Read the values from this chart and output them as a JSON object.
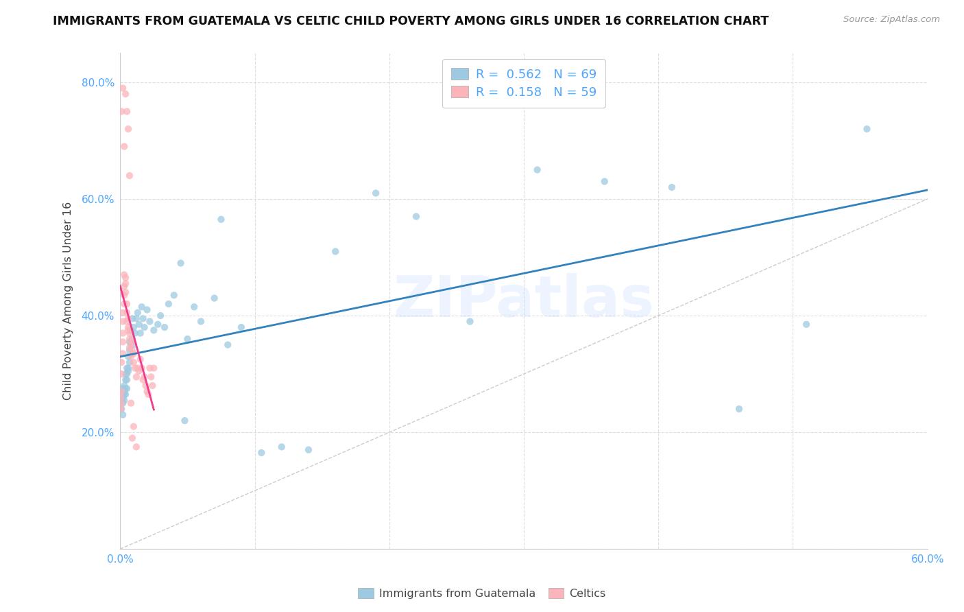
{
  "title": "IMMIGRANTS FROM GUATEMALA VS CELTIC CHILD POVERTY AMONG GIRLS UNDER 16 CORRELATION CHART",
  "source": "Source: ZipAtlas.com",
  "ylabel": "Child Poverty Among Girls Under 16",
  "xlim": [
    0.0,
    0.6
  ],
  "ylim": [
    0.0,
    0.85
  ],
  "x_ticks": [
    0.0,
    0.1,
    0.2,
    0.3,
    0.4,
    0.5,
    0.6
  ],
  "y_ticks": [
    0.0,
    0.2,
    0.4,
    0.6,
    0.8
  ],
  "x_tick_labels": [
    "0.0%",
    "",
    "",
    "",
    "",
    "",
    "60.0%"
  ],
  "y_tick_labels": [
    "",
    "20.0%",
    "40.0%",
    "60.0%",
    "80.0%"
  ],
  "blue_color": "#9ecae1",
  "pink_color": "#fbb4b9",
  "blue_line_color": "#3182bd",
  "pink_line_color": "#f03b8c",
  "diagonal_color": "#cccccc",
  "watermark_text": "ZIPatlas",
  "legend_r1": "0.562",
  "legend_n1": "69",
  "legend_r2": "0.158",
  "legend_n2": "59",
  "legend_label1": "Immigrants from Guatemala",
  "legend_label2": "Celtics",
  "blue_x": [
    0.001,
    0.001,
    0.001,
    0.002,
    0.002,
    0.002,
    0.002,
    0.003,
    0.003,
    0.003,
    0.003,
    0.004,
    0.004,
    0.004,
    0.004,
    0.005,
    0.005,
    0.005,
    0.005,
    0.006,
    0.006,
    0.006,
    0.007,
    0.007,
    0.007,
    0.008,
    0.008,
    0.009,
    0.009,
    0.01,
    0.01,
    0.011,
    0.012,
    0.013,
    0.014,
    0.015,
    0.016,
    0.017,
    0.018,
    0.02,
    0.022,
    0.025,
    0.028,
    0.03,
    0.033,
    0.036,
    0.04,
    0.045,
    0.05,
    0.055,
    0.06,
    0.07,
    0.08,
    0.09,
    0.105,
    0.12,
    0.14,
    0.16,
    0.19,
    0.22,
    0.26,
    0.31,
    0.36,
    0.41,
    0.46,
    0.51,
    0.555,
    0.048,
    0.075
  ],
  "blue_y": [
    0.27,
    0.255,
    0.24,
    0.26,
    0.275,
    0.25,
    0.23,
    0.27,
    0.255,
    0.28,
    0.265,
    0.29,
    0.275,
    0.3,
    0.265,
    0.29,
    0.31,
    0.275,
    0.3,
    0.31,
    0.33,
    0.305,
    0.32,
    0.34,
    0.355,
    0.35,
    0.375,
    0.36,
    0.395,
    0.35,
    0.38,
    0.37,
    0.395,
    0.405,
    0.385,
    0.37,
    0.415,
    0.395,
    0.38,
    0.41,
    0.39,
    0.375,
    0.385,
    0.4,
    0.38,
    0.42,
    0.435,
    0.49,
    0.36,
    0.415,
    0.39,
    0.43,
    0.35,
    0.38,
    0.165,
    0.175,
    0.17,
    0.51,
    0.61,
    0.57,
    0.39,
    0.65,
    0.63,
    0.62,
    0.24,
    0.385,
    0.72,
    0.22,
    0.565
  ],
  "pink_x": [
    0.0005,
    0.0005,
    0.001,
    0.001,
    0.001,
    0.001,
    0.002,
    0.002,
    0.002,
    0.002,
    0.002,
    0.003,
    0.003,
    0.003,
    0.003,
    0.004,
    0.004,
    0.004,
    0.005,
    0.005,
    0.005,
    0.006,
    0.006,
    0.006,
    0.007,
    0.007,
    0.007,
    0.008,
    0.008,
    0.009,
    0.009,
    0.01,
    0.01,
    0.011,
    0.012,
    0.013,
    0.014,
    0.015,
    0.016,
    0.017,
    0.018,
    0.019,
    0.02,
    0.021,
    0.022,
    0.023,
    0.024,
    0.025,
    0.001,
    0.002,
    0.003,
    0.004,
    0.005,
    0.006,
    0.007,
    0.008,
    0.009,
    0.01,
    0.012
  ],
  "pink_y": [
    0.24,
    0.26,
    0.25,
    0.27,
    0.3,
    0.32,
    0.335,
    0.355,
    0.37,
    0.39,
    0.405,
    0.42,
    0.435,
    0.45,
    0.47,
    0.44,
    0.455,
    0.465,
    0.42,
    0.39,
    0.405,
    0.375,
    0.395,
    0.38,
    0.36,
    0.345,
    0.37,
    0.35,
    0.33,
    0.355,
    0.34,
    0.32,
    0.335,
    0.31,
    0.295,
    0.31,
    0.305,
    0.325,
    0.31,
    0.29,
    0.295,
    0.28,
    0.27,
    0.265,
    0.31,
    0.295,
    0.28,
    0.31,
    0.75,
    0.79,
    0.69,
    0.78,
    0.75,
    0.72,
    0.64,
    0.25,
    0.19,
    0.21,
    0.175
  ]
}
